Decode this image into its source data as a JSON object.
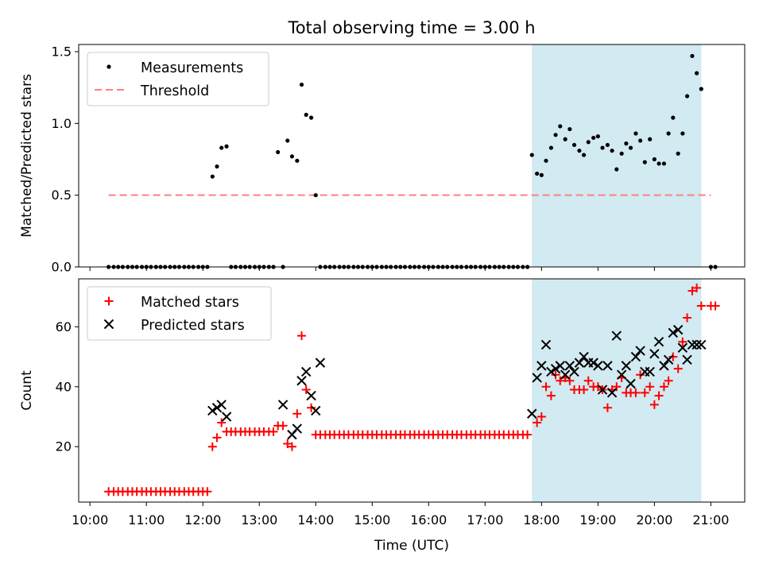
{
  "chart_data": {
    "title": "Total observing time = 3.00 h",
    "shaded_region": {
      "x0": 17.83,
      "x1": 20.83,
      "color": "#add8e6"
    },
    "x_axis": {
      "label": "Time (UTC)",
      "range": [
        9.8,
        21.6
      ],
      "ticks": [
        10,
        11,
        12,
        13,
        14,
        15,
        16,
        17,
        18,
        19,
        20,
        21
      ],
      "tick_labels": [
        "10:00",
        "11:00",
        "12:00",
        "13:00",
        "14:00",
        "15:00",
        "16:00",
        "17:00",
        "18:00",
        "19:00",
        "20:00",
        "21:00"
      ]
    },
    "panels": [
      {
        "type": "scatter",
        "ylabel": "Matched/Predicted stars",
        "ylim": [
          0,
          1.55
        ],
        "yticks": [
          0.0,
          0.5,
          1.0,
          1.5
        ],
        "ytick_labels": [
          "0.0",
          "0.5",
          "1.0",
          "1.5"
        ],
        "legend": {
          "position": "top-left",
          "entries": [
            "Measurements",
            "Threshold"
          ]
        },
        "threshold": {
          "name": "Threshold",
          "x": [
            10.33,
            21.0
          ],
          "y": 0.5,
          "color": "#ff7f7f"
        },
        "measurements": {
          "name": "Measurements",
          "color": "#000000",
          "x": [
            10.33,
            10.42,
            10.5,
            10.58,
            10.67,
            10.75,
            10.83,
            10.92,
            11.0,
            11.08,
            11.17,
            11.25,
            11.33,
            11.42,
            11.5,
            11.58,
            11.67,
            11.75,
            11.83,
            11.92,
            12.0,
            12.08,
            12.17,
            12.25,
            12.33,
            12.42,
            12.5,
            12.58,
            12.67,
            12.75,
            12.83,
            12.92,
            13.0,
            13.08,
            13.17,
            13.25,
            13.33,
            13.42,
            13.5,
            13.58,
            13.67,
            13.75,
            13.83,
            13.92,
            14.0,
            14.08,
            14.17,
            14.25,
            14.33,
            14.42,
            14.5,
            14.58,
            14.67,
            14.75,
            14.83,
            14.92,
            15.0,
            15.08,
            15.17,
            15.25,
            15.33,
            15.42,
            15.5,
            15.58,
            15.67,
            15.75,
            15.83,
            15.92,
            16.0,
            16.08,
            16.17,
            16.25,
            16.33,
            16.42,
            16.5,
            16.58,
            16.67,
            16.75,
            16.83,
            16.92,
            17.0,
            17.08,
            17.17,
            17.25,
            17.33,
            17.42,
            17.5,
            17.58,
            17.67,
            17.75,
            17.83,
            17.92,
            18.0,
            18.08,
            18.17,
            18.25,
            18.33,
            18.42,
            18.5,
            18.58,
            18.67,
            18.75,
            18.83,
            18.92,
            19.0,
            19.08,
            19.17,
            19.25,
            19.33,
            19.42,
            19.5,
            19.58,
            19.67,
            19.75,
            19.83,
            19.92,
            20.0,
            20.08,
            20.17,
            20.25,
            20.33,
            20.42,
            20.5,
            20.58,
            20.67,
            20.75,
            20.83,
            21.0,
            21.08
          ],
          "y": [
            0,
            0,
            0,
            0,
            0,
            0,
            0,
            0,
            0,
            0,
            0,
            0,
            0,
            0,
            0,
            0,
            0,
            0,
            0,
            0,
            0,
            0,
            0.63,
            0.7,
            0.83,
            0.84,
            0,
            0,
            0,
            0,
            0,
            0,
            0,
            0,
            0,
            0,
            0.8,
            0,
            0.88,
            0.77,
            0.74,
            1.27,
            1.06,
            1.04,
            0.5,
            0,
            0,
            0,
            0,
            0,
            0,
            0,
            0,
            0,
            0,
            0,
            0,
            0,
            0,
            0,
            0,
            0,
            0,
            0,
            0,
            0,
            0,
            0,
            0,
            0,
            0,
            0,
            0,
            0,
            0,
            0,
            0,
            0,
            0,
            0,
            0,
            0,
            0,
            0,
            0,
            0,
            0,
            0,
            0,
            0,
            0.78,
            0.65,
            0.64,
            0.74,
            0.83,
            0.92,
            0.98,
            0.89,
            0.96,
            0.85,
            0.81,
            0.78,
            0.87,
            0.9,
            0.91,
            0.83,
            0.85,
            0.81,
            0.68,
            0.79,
            0.86,
            0.83,
            0.93,
            0.88,
            0.73,
            0.89,
            0.75,
            0.72,
            0.72,
            0.93,
            1.04,
            0.79,
            0.93,
            1.19,
            1.47,
            1.35,
            1.24,
            0,
            0
          ]
        }
      },
      {
        "type": "scatter",
        "ylabel": "Count",
        "ylim": [
          1.5,
          76
        ],
        "yticks": [
          20,
          40,
          60
        ],
        "ytick_labels": [
          "20",
          "40",
          "60"
        ],
        "legend": {
          "position": "top-left",
          "entries": [
            "Matched stars",
            "Predicted stars"
          ]
        },
        "series": [
          {
            "name": "Matched stars",
            "marker": "plus",
            "color": "#ff0000",
            "x": [
              10.33,
              10.42,
              10.5,
              10.58,
              10.67,
              10.75,
              10.83,
              10.92,
              11.0,
              11.08,
              11.17,
              11.25,
              11.33,
              11.42,
              11.5,
              11.58,
              11.67,
              11.75,
              11.83,
              11.92,
              12.0,
              12.08,
              12.17,
              12.25,
              12.33,
              12.42,
              12.5,
              12.58,
              12.67,
              12.75,
              12.83,
              12.92,
              13.0,
              13.08,
              13.17,
              13.25,
              13.33,
              13.42,
              13.5,
              13.58,
              13.67,
              13.75,
              13.83,
              13.92,
              14.0,
              14.08,
              14.17,
              14.25,
              14.33,
              14.42,
              14.5,
              14.58,
              14.67,
              14.75,
              14.83,
              14.92,
              15.0,
              15.08,
              15.17,
              15.25,
              15.33,
              15.42,
              15.5,
              15.58,
              15.67,
              15.75,
              15.83,
              15.92,
              16.0,
              16.08,
              16.17,
              16.25,
              16.33,
              16.42,
              16.5,
              16.58,
              16.67,
              16.75,
              16.83,
              16.92,
              17.0,
              17.08,
              17.17,
              17.25,
              17.33,
              17.42,
              17.5,
              17.58,
              17.67,
              17.75,
              17.92,
              18.0,
              18.08,
              18.17,
              18.25,
              18.33,
              18.42,
              18.5,
              18.58,
              18.67,
              18.75,
              18.83,
              18.92,
              19.0,
              19.08,
              19.17,
              19.25,
              19.33,
              19.42,
              19.5,
              19.58,
              19.67,
              19.75,
              19.83,
              19.92,
              20.0,
              20.08,
              20.17,
              20.25,
              20.33,
              20.42,
              20.5,
              20.58,
              20.67,
              20.75,
              20.83,
              21.0,
              21.08
            ],
            "y": [
              5,
              5,
              5,
              5,
              5,
              5,
              5,
              5,
              5,
              5,
              5,
              5,
              5,
              5,
              5,
              5,
              5,
              5,
              5,
              5,
              5,
              5,
              20,
              23,
              28,
              25,
              25,
              25,
              25,
              25,
              25,
              25,
              25,
              25,
              25,
              25,
              27,
              27,
              21,
              20,
              31,
              57,
              39,
              33,
              24,
              24,
              24,
              24,
              24,
              24,
              24,
              24,
              24,
              24,
              24,
              24,
              24,
              24,
              24,
              24,
              24,
              24,
              24,
              24,
              24,
              24,
              24,
              24,
              24,
              24,
              24,
              24,
              24,
              24,
              24,
              24,
              24,
              24,
              24,
              24,
              24,
              24,
              24,
              24,
              24,
              24,
              24,
              24,
              24,
              24,
              28,
              30,
              40,
              37,
              44,
              42,
              43,
              42,
              39,
              39,
              39,
              42,
              40,
              40,
              39,
              33,
              39,
              40,
              43,
              38,
              38,
              38,
              44,
              38,
              40,
              34,
              37,
              40,
              42,
              50,
              46,
              55,
              63,
              72,
              73,
              67,
              67,
              67
            ]
          },
          {
            "name": "Predicted stars",
            "marker": "x",
            "color": "#000000",
            "x": [
              12.17,
              12.25,
              12.33,
              12.42,
              13.42,
              13.58,
              13.67,
              13.75,
              13.83,
              13.92,
              14.0,
              14.08,
              17.83,
              17.92,
              18.0,
              18.08,
              18.17,
              18.25,
              18.33,
              18.42,
              18.5,
              18.58,
              18.67,
              18.75,
              18.83,
              18.92,
              19.0,
              19.08,
              19.17,
              19.25,
              19.33,
              19.42,
              19.5,
              19.58,
              19.67,
              19.75,
              19.83,
              19.92,
              20.0,
              20.08,
              20.17,
              20.25,
              20.33,
              20.42,
              20.5,
              20.58,
              20.67,
              20.75,
              20.83
            ],
            "y": [
              32,
              33,
              34,
              30,
              34,
              24,
              26,
              42,
              45,
              37,
              32,
              48,
              31,
              43,
              47,
              54,
              45,
              46,
              47,
              44,
              47,
              45,
              48,
              50,
              48,
              48,
              47,
              39,
              47,
              38,
              57,
              44,
              47,
              41,
              50,
              52,
              45,
              45,
              51,
              55,
              47,
              49,
              58,
              59,
              53,
              49,
              54,
              54,
              54
            ]
          }
        ]
      }
    ]
  }
}
